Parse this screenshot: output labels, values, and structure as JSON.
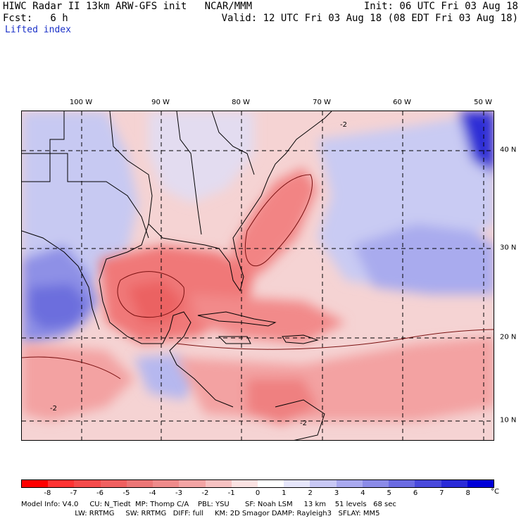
{
  "header": {
    "title": "HIWC Radar II 13km ARW-GFS init   NCAR/MMM",
    "init": "Init: 06 UTC Fri 03 Aug 18",
    "fcst": "Fcst:   6 h",
    "valid": "Valid: 12 UTC Fri 03 Aug 18 (08 EDT Fri 03 Aug 18)",
    "field": "Lifted index"
  },
  "map": {
    "lon_labels": [
      "100 W",
      "90 W",
      "80 W",
      "70 W",
      "60 W",
      "50 W"
    ],
    "lat_labels": [
      "40 N",
      "30 N",
      "20 N",
      "10 N"
    ],
    "contour_labels": [
      "-2",
      "-2",
      "-2"
    ]
  },
  "colorbar": {
    "ticks": [
      "-8",
      "-7",
      "-6",
      "-5",
      "-4",
      "-3",
      "-2",
      "-1",
      "0",
      "1",
      "2",
      "3",
      "4",
      "5",
      "6",
      "7",
      "8"
    ],
    "unit": "°C",
    "colors": [
      "#ff0000",
      "#ff3333",
      "#f54b4b",
      "#f06060",
      "#ec7676",
      "#ef8b8b",
      "#f3a4a4",
      "#f7c2c2",
      "#fbe2e2",
      "#ffffff",
      "#e6e6fb",
      "#c8c8f5",
      "#a9a9ef",
      "#8b8be8",
      "#6b6be2",
      "#4a4adc",
      "#2a2ad8",
      "#0000d8"
    ]
  },
  "footer": {
    "line1": "Model Info: V4.0     CU: N_Tiedt  MP: Thomp C/A    PBL: YSU       SF: Noah LSM     13 km    51 levels   68 sec",
    "line2": "                        LW: RRTMG     SW: RRTMG   DIFF: full     KM: 2D Smagor DAMP: Rayleigh3   SFLAY: MM5"
  }
}
